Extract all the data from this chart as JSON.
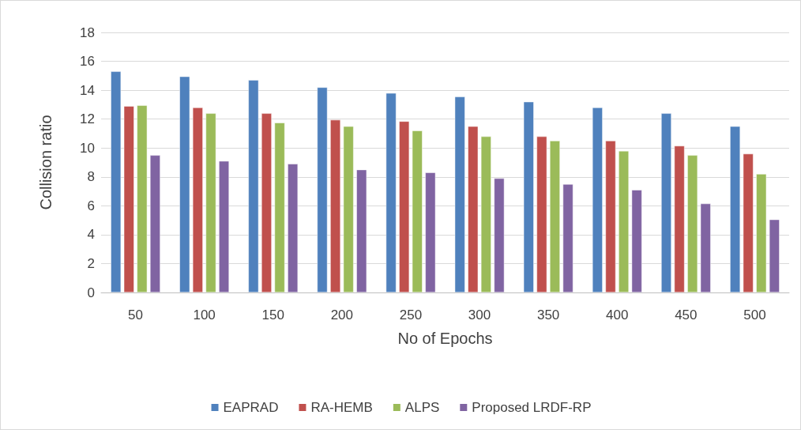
{
  "chart_data": {
    "type": "bar",
    "xlabel": "No of Epochs",
    "ylabel": "Collision ratio",
    "categories": [
      "50",
      "100",
      "150",
      "200",
      "250",
      "300",
      "350",
      "400",
      "450",
      "500"
    ],
    "series": [
      {
        "name": "EAPRAD",
        "color": "#4f81bd",
        "values": [
          15.3,
          14.95,
          14.7,
          14.2,
          13.8,
          13.55,
          13.2,
          12.8,
          12.4,
          11.5
        ]
      },
      {
        "name": "RA-HEMB",
        "color": "#c0504d",
        "values": [
          12.9,
          12.8,
          12.4,
          11.95,
          11.85,
          11.5,
          10.8,
          10.5,
          10.15,
          9.6
        ]
      },
      {
        "name": "ALPS",
        "color": "#9bbb59",
        "values": [
          12.95,
          12.4,
          11.75,
          11.5,
          11.2,
          10.8,
          10.5,
          9.8,
          9.5,
          8.2
        ]
      },
      {
        "name": "Proposed LRDF-RP",
        "color": "#8064a2",
        "values": [
          9.5,
          9.1,
          8.9,
          8.5,
          8.3,
          7.9,
          7.5,
          7.1,
          6.15,
          5.05
        ]
      }
    ],
    "ylim": [
      0,
      18
    ],
    "yticks": [
      0,
      2,
      4,
      6,
      8,
      10,
      12,
      14,
      16,
      18
    ],
    "grid": "y",
    "legend": "bottom"
  }
}
